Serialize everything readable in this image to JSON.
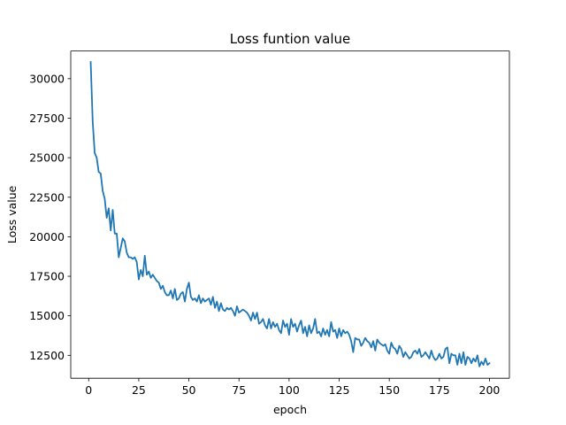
{
  "chart_data": {
    "type": "line",
    "title": "Loss funtion value",
    "xlabel": "epoch",
    "ylabel": "Loss value",
    "xlim": [
      -8.95,
      209.95
    ],
    "ylim": [
      11050,
      31750
    ],
    "xticks": [
      0,
      25,
      50,
      75,
      100,
      125,
      150,
      175,
      200
    ],
    "yticks": [
      12500,
      15000,
      17500,
      20000,
      22500,
      25000,
      27500,
      30000
    ],
    "grid": false,
    "legend": "none",
    "series": [
      {
        "color": "#1f77b4",
        "x": [
          1,
          2,
          3,
          4,
          5,
          6,
          7,
          8,
          9,
          10,
          11,
          12,
          13,
          14,
          15,
          16,
          17,
          18,
          19,
          20,
          21,
          22,
          23,
          24,
          25,
          26,
          27,
          28,
          29,
          30,
          31,
          32,
          33,
          34,
          35,
          36,
          37,
          38,
          39,
          40,
          41,
          42,
          43,
          44,
          45,
          46,
          47,
          48,
          49,
          50,
          51,
          52,
          53,
          54,
          55,
          56,
          57,
          58,
          59,
          60,
          61,
          62,
          63,
          64,
          65,
          66,
          67,
          68,
          69,
          70,
          71,
          72,
          73,
          74,
          75,
          76,
          77,
          78,
          79,
          80,
          81,
          82,
          83,
          84,
          85,
          86,
          87,
          88,
          89,
          90,
          91,
          92,
          93,
          94,
          95,
          96,
          97,
          98,
          99,
          100,
          101,
          102,
          103,
          104,
          105,
          106,
          107,
          108,
          109,
          110,
          111,
          112,
          113,
          114,
          115,
          116,
          117,
          118,
          119,
          120,
          121,
          122,
          123,
          124,
          125,
          126,
          127,
          128,
          129,
          130,
          131,
          132,
          133,
          134,
          135,
          136,
          137,
          138,
          139,
          140,
          141,
          142,
          143,
          144,
          145,
          146,
          147,
          148,
          149,
          150,
          151,
          152,
          153,
          154,
          155,
          156,
          157,
          158,
          159,
          160,
          161,
          162,
          163,
          164,
          165,
          166,
          167,
          168,
          169,
          170,
          171,
          172,
          173,
          174,
          175,
          176,
          177,
          178,
          179,
          180,
          181,
          182,
          183,
          184,
          185,
          186,
          187,
          188,
          189,
          190,
          191,
          192,
          193,
          194,
          195,
          196,
          197,
          198,
          199,
          200
        ],
        "y": [
          31050,
          27300,
          25300,
          25000,
          24100,
          24000,
          22900,
          22400,
          21200,
          21800,
          20400,
          21700,
          20200,
          20200,
          18700,
          19300,
          19900,
          19700,
          19000,
          18700,
          18700,
          18600,
          18700,
          18400,
          17300,
          17900,
          17500,
          18800,
          17600,
          17800,
          17400,
          17600,
          17400,
          17200,
          17100,
          16700,
          16900,
          16500,
          16300,
          16300,
          16600,
          16100,
          16700,
          16000,
          16100,
          16400,
          16500,
          15900,
          16700,
          17100,
          16200,
          16000,
          16100,
          15900,
          16300,
          15800,
          16100,
          15900,
          16000,
          16100,
          15700,
          16200,
          15500,
          15900,
          15300,
          15800,
          15400,
          15300,
          15500,
          15400,
          15500,
          15300,
          15000,
          15600,
          15200,
          15300,
          15400,
          15300,
          15200,
          15000,
          14700,
          15200,
          14800,
          15200,
          14500,
          14600,
          14800,
          14400,
          14200,
          14800,
          14200,
          14600,
          14300,
          14500,
          14100,
          13900,
          14700,
          14300,
          14500,
          13800,
          14800,
          14300,
          14500,
          14000,
          14400,
          14700,
          13900,
          14300,
          13700,
          14400,
          13900,
          14200,
          14800,
          13900,
          14000,
          13700,
          14200,
          13800,
          14100,
          13700,
          14600,
          14000,
          14100,
          13600,
          14200,
          13700,
          14100,
          13900,
          14000,
          13800,
          13400,
          12700,
          13600,
          13500,
          13500,
          13100,
          13300,
          13600,
          13400,
          13300,
          13000,
          13400,
          12800,
          13500,
          13300,
          13200,
          13100,
          13200,
          12800,
          12600,
          13300,
          13000,
          12900,
          12600,
          13100,
          12900,
          12400,
          12700,
          12500,
          12300,
          12400,
          12700,
          12800,
          12600,
          12900,
          12400,
          12500,
          12700,
          12500,
          12300,
          12800,
          12400,
          12200,
          12300,
          12600,
          12300,
          12400,
          12900,
          13000,
          12000,
          12600,
          12500,
          12500,
          11900,
          12600,
          12000,
          12700,
          11900,
          12400,
          12300,
          12000,
          12300,
          12100,
          12500,
          11800,
          12100,
          11900,
          12300,
          11900,
          12000
        ]
      }
    ]
  }
}
